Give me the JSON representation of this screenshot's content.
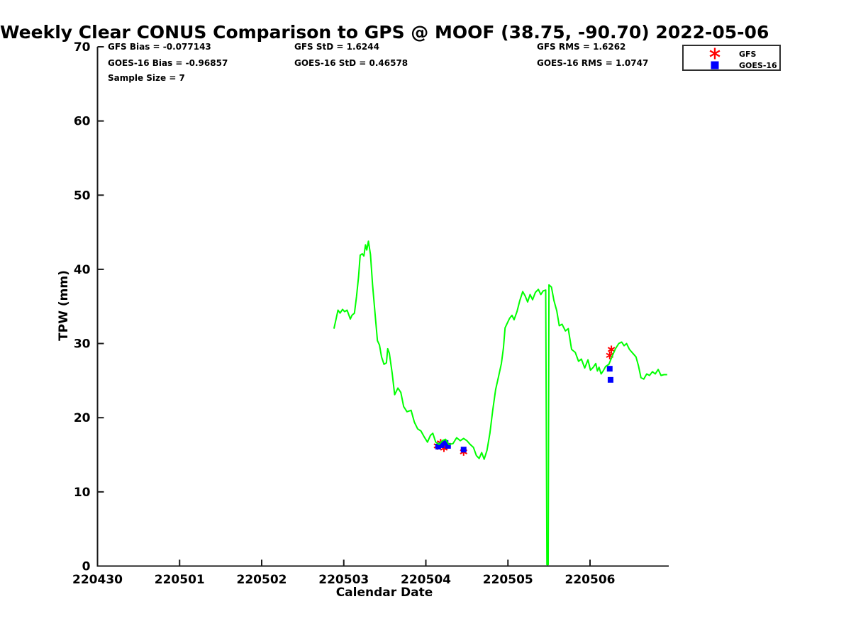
{
  "title": "Weekly Clear CONUS Comparison to GPS @ MOOF (38.75, -90.70) 2022-05-06",
  "stats": {
    "col1": [
      "GFS Bias = -0.077143",
      "GOES-16 Bias = -0.96857",
      "Sample Size = 7"
    ],
    "col2": [
      "GFS StD = 1.6244",
      "GOES-16 StD = 0.46578"
    ],
    "col3": [
      "GFS RMS = 1.6262",
      "GOES-16 RMS = 1.0747"
    ]
  },
  "legend": {
    "items": [
      {
        "label": "GFS",
        "marker": "asterisk",
        "color": "#ff0000"
      },
      {
        "label": "GOES-16",
        "marker": "square",
        "color": "#0000ff"
      }
    ]
  },
  "colors": {
    "gps_line": "#00ff00",
    "gfs": "#ff0000",
    "goes16": "#0000ff",
    "axis": "#1a1a1a",
    "text": "#000000",
    "background": "#ffffff"
  },
  "chart_data": {
    "type": "line",
    "title": "Weekly Clear CONUS Comparison to GPS @ MOOF (38.75, -90.70) 2022-05-06",
    "xlabel": "Calendar Date",
    "ylabel": "TPW (mm)",
    "x_unit": "days since 220430 (fractional)",
    "x_tick_days": [
      0,
      1,
      2,
      3,
      4,
      5,
      6
    ],
    "x_tick_labels": [
      "220430",
      "220501",
      "220502",
      "220503",
      "220504",
      "220505",
      "220506"
    ],
    "xlim_days": [
      0,
      6.96
    ],
    "y_ticks": [
      0,
      10,
      20,
      30,
      40,
      50,
      60,
      70
    ],
    "ylim": [
      0,
      70
    ],
    "grid": false,
    "legend_position": "top-right-outside",
    "series": [
      {
        "name": "GFS",
        "type": "scatter",
        "marker": "asterisk",
        "color": "#ff0000",
        "points": [
          [
            4.14,
            16.2
          ],
          [
            4.18,
            16.6
          ],
          [
            4.22,
            15.9
          ],
          [
            4.26,
            16.3
          ],
          [
            4.46,
            15.4
          ],
          [
            6.24,
            28.4
          ],
          [
            6.26,
            29.2
          ]
        ]
      },
      {
        "name": "GOES-16",
        "type": "scatter",
        "marker": "square",
        "color": "#0000ff",
        "points": [
          [
            4.15,
            16.1
          ],
          [
            4.19,
            16.3
          ],
          [
            4.24,
            16.6
          ],
          [
            4.27,
            16.2
          ],
          [
            4.46,
            15.7
          ],
          [
            6.24,
            26.6
          ],
          [
            6.25,
            25.1
          ]
        ]
      },
      {
        "name": "GPS TPW",
        "type": "line",
        "color": "#00ff00",
        "points": [
          [
            2.88,
            32.0
          ],
          [
            2.9,
            33.0
          ],
          [
            2.93,
            34.5
          ],
          [
            2.955,
            34.1
          ],
          [
            2.985,
            34.6
          ],
          [
            3.01,
            34.3
          ],
          [
            3.04,
            34.5
          ],
          [
            3.08,
            33.3
          ],
          [
            3.1,
            33.8
          ],
          [
            3.13,
            34.1
          ],
          [
            3.155,
            36.3
          ],
          [
            3.18,
            39.0
          ],
          [
            3.2,
            41.9
          ],
          [
            3.225,
            42.1
          ],
          [
            3.245,
            41.8
          ],
          [
            3.265,
            43.3
          ],
          [
            3.28,
            42.6
          ],
          [
            3.3,
            43.8
          ],
          [
            3.325,
            42.0
          ],
          [
            3.35,
            38.0
          ],
          [
            3.38,
            34.2
          ],
          [
            3.41,
            30.4
          ],
          [
            3.435,
            29.8
          ],
          [
            3.46,
            28.2
          ],
          [
            3.49,
            27.2
          ],
          [
            3.52,
            27.4
          ],
          [
            3.535,
            29.3
          ],
          [
            3.555,
            28.7
          ],
          [
            3.59,
            26.0
          ],
          [
            3.62,
            23.1
          ],
          [
            3.66,
            24.0
          ],
          [
            3.695,
            23.4
          ],
          [
            3.73,
            21.5
          ],
          [
            3.77,
            20.8
          ],
          [
            3.82,
            21.0
          ],
          [
            3.86,
            19.4
          ],
          [
            3.9,
            18.5
          ],
          [
            3.94,
            18.2
          ],
          [
            3.98,
            17.4
          ],
          [
            4.02,
            16.7
          ],
          [
            4.055,
            17.6
          ],
          [
            4.085,
            17.9
          ],
          [
            4.12,
            16.7
          ],
          [
            4.16,
            16.4
          ],
          [
            4.2,
            16.9
          ],
          [
            4.24,
            17.1
          ],
          [
            4.28,
            16.4
          ],
          [
            4.33,
            16.5
          ],
          [
            4.375,
            17.3
          ],
          [
            4.42,
            16.9
          ],
          [
            4.46,
            17.2
          ],
          [
            4.5,
            16.9
          ],
          [
            4.54,
            16.4
          ],
          [
            4.58,
            16.0
          ],
          [
            4.615,
            14.9
          ],
          [
            4.65,
            14.5
          ],
          [
            4.68,
            15.3
          ],
          [
            4.71,
            14.4
          ],
          [
            4.745,
            15.6
          ],
          [
            4.78,
            17.9
          ],
          [
            4.815,
            21.0
          ],
          [
            4.85,
            23.8
          ],
          [
            4.885,
            25.5
          ],
          [
            4.92,
            27.3
          ],
          [
            4.945,
            29.4
          ],
          [
            4.965,
            32.1
          ],
          [
            4.99,
            32.7
          ],
          [
            5.02,
            33.4
          ],
          [
            5.05,
            33.8
          ],
          [
            5.075,
            33.2
          ],
          [
            5.11,
            34.3
          ],
          [
            5.145,
            35.8
          ],
          [
            5.18,
            37.0
          ],
          [
            5.21,
            36.4
          ],
          [
            5.24,
            35.6
          ],
          [
            5.27,
            36.6
          ],
          [
            5.3,
            35.9
          ],
          [
            5.335,
            36.9
          ],
          [
            5.37,
            37.3
          ],
          [
            5.4,
            36.6
          ],
          [
            5.43,
            37.1
          ],
          [
            5.46,
            37.2
          ],
          [
            5.475,
            0.2
          ],
          [
            5.49,
            0.2
          ],
          [
            5.5,
            37.9
          ],
          [
            5.53,
            37.6
          ],
          [
            5.56,
            35.8
          ],
          [
            5.595,
            34.4
          ],
          [
            5.625,
            32.4
          ],
          [
            5.66,
            32.6
          ],
          [
            5.7,
            31.7
          ],
          [
            5.735,
            32.0
          ],
          [
            5.775,
            29.2
          ],
          [
            5.82,
            28.8
          ],
          [
            5.86,
            27.6
          ],
          [
            5.895,
            27.9
          ],
          [
            5.935,
            26.7
          ],
          [
            5.975,
            27.8
          ],
          [
            6.005,
            26.4
          ],
          [
            6.04,
            26.8
          ],
          [
            6.07,
            27.3
          ],
          [
            6.09,
            26.3
          ],
          [
            6.11,
            26.8
          ],
          [
            6.135,
            25.9
          ],
          [
            6.16,
            26.3
          ],
          [
            6.19,
            26.9
          ],
          [
            6.23,
            27.2
          ],
          [
            6.27,
            28.3
          ],
          [
            6.31,
            29.3
          ],
          [
            6.35,
            30.0
          ],
          [
            6.385,
            30.2
          ],
          [
            6.415,
            29.7
          ],
          [
            6.445,
            30.0
          ],
          [
            6.48,
            29.2
          ],
          [
            6.52,
            28.7
          ],
          [
            6.56,
            28.2
          ],
          [
            6.59,
            27.0
          ],
          [
            6.62,
            25.4
          ],
          [
            6.655,
            25.2
          ],
          [
            6.69,
            25.9
          ],
          [
            6.725,
            25.7
          ],
          [
            6.76,
            26.2
          ],
          [
            6.795,
            25.9
          ],
          [
            6.83,
            26.5
          ],
          [
            6.865,
            25.7
          ],
          [
            6.9,
            25.8
          ],
          [
            6.94,
            25.8
          ]
        ]
      }
    ]
  }
}
